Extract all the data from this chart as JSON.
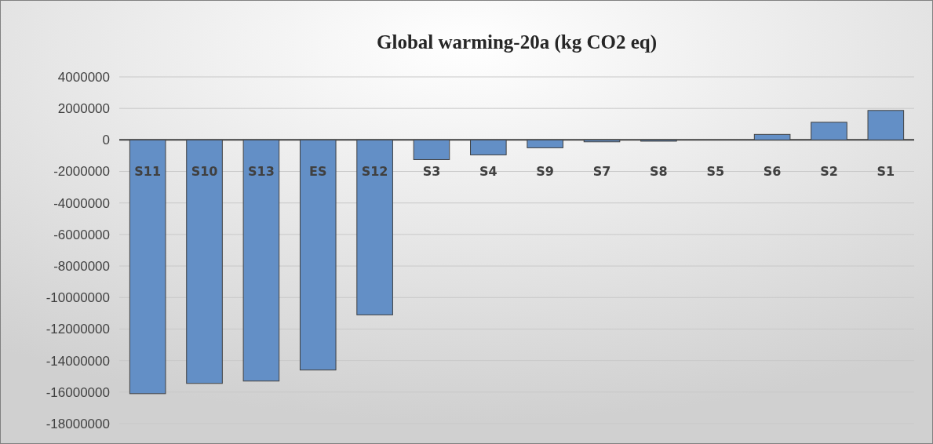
{
  "chart_data": {
    "type": "bar",
    "title": "Global warming-20a (kg CO2 eq)",
    "categories": [
      "S11",
      "S10",
      "S13",
      "ES",
      "S12",
      "S3",
      "S4",
      "S9",
      "S7",
      "S8",
      "S5",
      "S6",
      "S2",
      "S1"
    ],
    "values": [
      -16100000,
      -15450000,
      -15300000,
      -14600000,
      -11100000,
      -1250000,
      -950000,
      -500000,
      -120000,
      -80000,
      0,
      350000,
      1120000,
      1870000
    ],
    "color": "#638fc6",
    "ylim": [
      -18000000,
      4000000
    ],
    "yticks": [
      -18000000,
      -16000000,
      -14000000,
      -12000000,
      -10000000,
      -8000000,
      -6000000,
      -4000000,
      -2000000,
      0,
      2000000,
      4000000
    ],
    "grid": "y"
  }
}
